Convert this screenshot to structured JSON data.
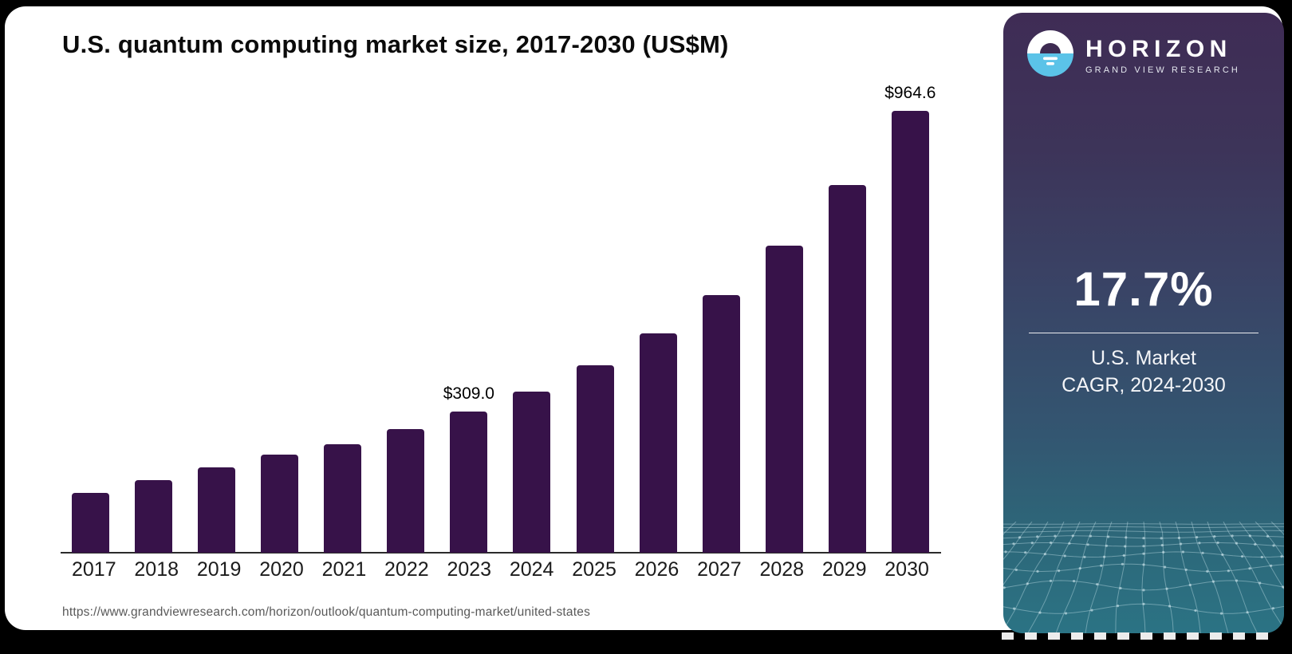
{
  "page": {
    "background_color": "#000000",
    "card_color": "#ffffff"
  },
  "chart_data": {
    "type": "bar",
    "title": "U.S. quantum computing market size, 2017-2030 (US$M)",
    "unit": "US$M",
    "categories": [
      "2017",
      "2018",
      "2019",
      "2020",
      "2021",
      "2022",
      "2023",
      "2024",
      "2025",
      "2026",
      "2027",
      "2028",
      "2029",
      "2030"
    ],
    "values": [
      131,
      159,
      186,
      214,
      237,
      270,
      309.0,
      351,
      410,
      479,
      563,
      670,
      803,
      964.6
    ],
    "data_labels": {
      "2023": "$309.0",
      "2030": "$964.6"
    },
    "bar_color": "#371249",
    "xlabel": "",
    "ylabel": "",
    "ylim": [
      0,
      1000
    ],
    "grid": false,
    "legend": false,
    "axis_line_color": "#2b2b2b"
  },
  "source_url": "https://www.grandviewresearch.com/horizon/outlook/quantum-computing-market/united-states",
  "sidebar": {
    "logo": {
      "brand": "HORIZON",
      "subbrand": "GRAND VIEW RESEARCH",
      "mark_icon": "horizon-sunset-icon",
      "mark_blue": "#5bc3e8",
      "mark_dome": "#3e2b52"
    },
    "stat": {
      "value": "17.7%",
      "label_line1": "U.S. Market",
      "label_line2": "CAGR, 2024-2030"
    },
    "colors": {
      "gradient_top": "#3f2c55",
      "gradient_bottom": "#2b7384"
    }
  }
}
